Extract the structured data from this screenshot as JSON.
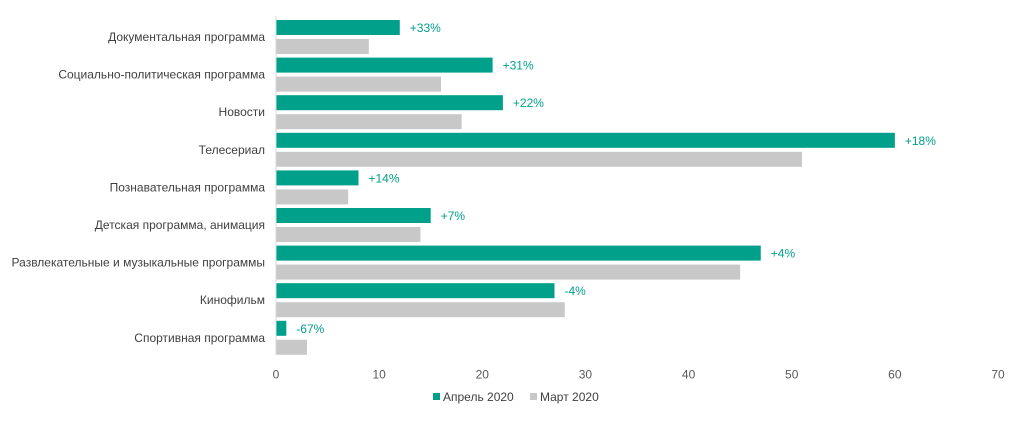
{
  "chart_data": {
    "type": "bar",
    "orientation": "horizontal",
    "categories": [
      "Документальная программа",
      "Социально-политическая программа",
      "Новости",
      "Телесериал",
      "Познавательная программа",
      "Детская программа, анимация",
      "Развлекательные и музыкальные программы",
      "Кинофильм",
      "Спортивная программа"
    ],
    "series": [
      {
        "name": "Апрель 2020",
        "color": "#00A08A",
        "values": [
          12,
          21,
          22,
          60,
          8,
          15,
          47,
          27,
          1
        ]
      },
      {
        "name": "Март 2020",
        "color": "#C8C8C8",
        "values": [
          9,
          16,
          18,
          51,
          7,
          14,
          45,
          28,
          3
        ]
      }
    ],
    "data_labels": [
      "+33%",
      "+31%",
      "+22%",
      "+18%",
      "+14%",
      "+7%",
      "+4%",
      "-4%",
      "-67%"
    ],
    "data_label_color": "#00A08A",
    "xlim": [
      0,
      70
    ],
    "xticks": [
      0,
      10,
      20,
      30,
      40,
      50,
      60,
      70
    ],
    "grid": false,
    "legend_position": "bottom",
    "title": "",
    "xlabel": "",
    "ylabel": ""
  }
}
